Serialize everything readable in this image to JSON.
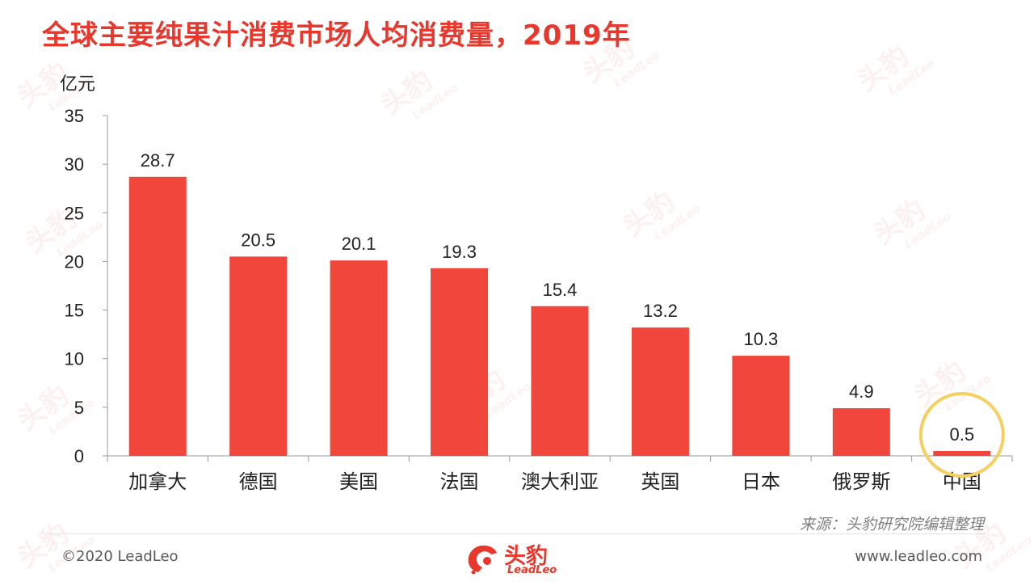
{
  "title": "全球主要纯果汁消费市场人均消费量，2019年",
  "source": "来源：头豹研究院编辑整理",
  "footer": {
    "copyright": "©2020 LeadLeo",
    "website": "www.leadleo.com",
    "logo_name": "头豹",
    "logo_sub": "LeadLeo"
  },
  "watermark": {
    "name": "头豹",
    "sub": "LeadLeo"
  },
  "colors": {
    "bar": "#f0463b",
    "title": "#e8372c",
    "highlight_ring": "#f5cf5f"
  },
  "chart_data": {
    "type": "bar",
    "ylabel": "亿元",
    "categories": [
      "加拿大",
      "德国",
      "美国",
      "法国",
      "澳大利亚",
      "英国",
      "日本",
      "俄罗斯",
      "中国"
    ],
    "values": [
      28.7,
      20.5,
      20.1,
      19.3,
      15.4,
      13.2,
      10.3,
      4.9,
      0.5
    ],
    "value_labels": [
      "28.7",
      "20.5",
      "20.1",
      "19.3",
      "15.4",
      "13.2",
      "10.3",
      "4.9",
      "0.5"
    ],
    "ylim": [
      0,
      35
    ],
    "yticks": [
      "0",
      "5",
      "10",
      "15",
      "20",
      "25",
      "30",
      "35"
    ],
    "highlight_category": "中国",
    "grid": false,
    "legend": "none"
  }
}
